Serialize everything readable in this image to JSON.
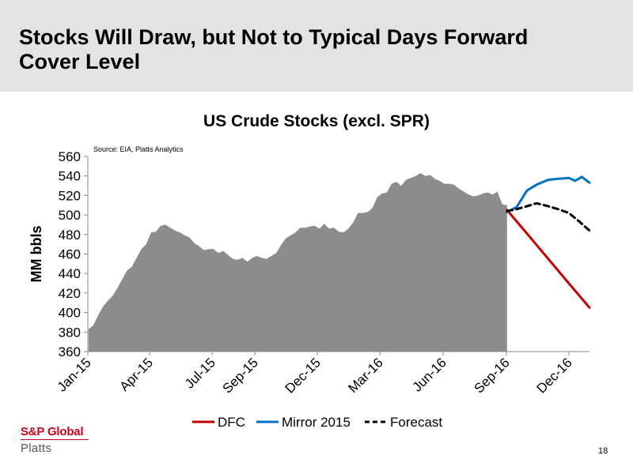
{
  "slide": {
    "title_line1": "Stocks Will Draw, but Not to Typical Days Forward",
    "title_line2": "Cover Level",
    "page_number": "18",
    "logo_brand": "S&P Global",
    "logo_sub": "Platts"
  },
  "chart_data": {
    "type": "area",
    "title": "US Crude Stocks (excl. SPR)",
    "source": "Source: EIA, Platts Analytics",
    "ylabel": "MM bbls",
    "xlabel": "",
    "ylim": [
      360,
      560
    ],
    "yticks": [
      360,
      380,
      400,
      420,
      440,
      460,
      480,
      500,
      520,
      540,
      560
    ],
    "xticks": [
      "Jan-15",
      "Apr-15",
      "Jul-15",
      "Sep-15",
      "Dec-15",
      "Mar-16",
      "Jun-16",
      "Sep-16",
      "Dec-16"
    ],
    "xlim": [
      "2015-01-01",
      "2016-12-31"
    ],
    "grid": false,
    "legend_position": "bottom",
    "colors": {
      "history": "#8c8c8c",
      "dfc": "#c00000",
      "mirror": "#0070c0",
      "forecast": "#000000"
    },
    "history": {
      "x": [
        "2015-01-02",
        "2015-01-09",
        "2015-01-16",
        "2015-01-23",
        "2015-01-30",
        "2015-02-06",
        "2015-02-13",
        "2015-02-20",
        "2015-02-27",
        "2015-03-06",
        "2015-03-13",
        "2015-03-20",
        "2015-03-27",
        "2015-04-03",
        "2015-04-10",
        "2015-04-17",
        "2015-04-24",
        "2015-05-01",
        "2015-05-08",
        "2015-05-15",
        "2015-05-22",
        "2015-05-29",
        "2015-06-05",
        "2015-06-12",
        "2015-06-19",
        "2015-06-26",
        "2015-07-03",
        "2015-07-10",
        "2015-07-17",
        "2015-07-24",
        "2015-07-31",
        "2015-08-07",
        "2015-08-14",
        "2015-08-21",
        "2015-08-28",
        "2015-09-04",
        "2015-09-11",
        "2015-09-18",
        "2015-09-25",
        "2015-10-02",
        "2015-10-09",
        "2015-10-16",
        "2015-10-23",
        "2015-10-30",
        "2015-11-06",
        "2015-11-13",
        "2015-11-20",
        "2015-11-27",
        "2015-12-04",
        "2015-12-11",
        "2015-12-18",
        "2015-12-25",
        "2016-01-01",
        "2016-01-08",
        "2016-01-15",
        "2016-01-22",
        "2016-01-29",
        "2016-02-05",
        "2016-02-12",
        "2016-02-19",
        "2016-02-26",
        "2016-03-04",
        "2016-03-11",
        "2016-03-18",
        "2016-03-25",
        "2016-04-01",
        "2016-04-08",
        "2016-04-15",
        "2016-04-22",
        "2016-04-29",
        "2016-05-06",
        "2016-05-13",
        "2016-05-20",
        "2016-05-27",
        "2016-06-03",
        "2016-06-10",
        "2016-06-17",
        "2016-06-24",
        "2016-07-01",
        "2016-07-08",
        "2016-07-15",
        "2016-07-22",
        "2016-07-29",
        "2016-08-05",
        "2016-08-12",
        "2016-08-19",
        "2016-08-26",
        "2016-09-02"
      ],
      "values": [
        383,
        387,
        397,
        406,
        412,
        417,
        425,
        434,
        443,
        447,
        456,
        465,
        470,
        482,
        483,
        489,
        490,
        487,
        484,
        482,
        479,
        477,
        471,
        468,
        464,
        465,
        465,
        461,
        463,
        459,
        455,
        454,
        456,
        452,
        456,
        458,
        456,
        455,
        458,
        461,
        469,
        476,
        479,
        482,
        487,
        487,
        488,
        489,
        486,
        491,
        486,
        487,
        483,
        482,
        486,
        492,
        502,
        502,
        503,
        507,
        518,
        522,
        523,
        532,
        534,
        530,
        536,
        538,
        540,
        543,
        540,
        541,
        537,
        535,
        532,
        532,
        531,
        527,
        524,
        521,
        519,
        520,
        522,
        523,
        521,
        524,
        511,
        510
      ]
    },
    "series": [
      {
        "name": "DFC",
        "x": [
          "2016-09-02",
          "2016-10-01",
          "2016-11-01",
          "2016-12-01",
          "2016-12-31"
        ],
        "values": [
          505,
          481,
          455,
          430,
          405
        ]
      },
      {
        "name": "Mirror 2015",
        "x": [
          "2016-09-02",
          "2016-09-16",
          "2016-10-01",
          "2016-10-15",
          "2016-11-01",
          "2016-11-15",
          "2016-12-01",
          "2016-12-10",
          "2016-12-20",
          "2016-12-31"
        ],
        "values": [
          503,
          508,
          525,
          531,
          536,
          537,
          538,
          535,
          539,
          533
        ]
      },
      {
        "name": "Forecast",
        "x": [
          "2016-09-02",
          "2016-09-16",
          "2016-10-01",
          "2016-10-15",
          "2016-11-01",
          "2016-11-15",
          "2016-12-01",
          "2016-12-15",
          "2016-12-31"
        ],
        "values": [
          504,
          506,
          509,
          512,
          509,
          506,
          502,
          494,
          484
        ]
      }
    ]
  }
}
